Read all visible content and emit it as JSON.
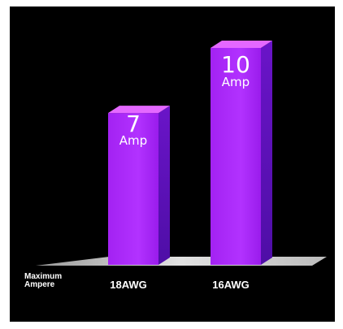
{
  "chart_data": {
    "type": "bar",
    "title": "",
    "xlabel": "Maximum Ampere",
    "xlabel_lines": [
      "Maximum",
      "Ampere"
    ],
    "ylabel": "",
    "categories": [
      "18AWG",
      "16AWG"
    ],
    "values": [
      7,
      10
    ],
    "unit": "Amp",
    "ylim": [
      0,
      10
    ],
    "grid": false,
    "legend": "none",
    "colors": {
      "background": "#000000",
      "bar_front": "#9d1cf0",
      "bar_front_light": "#b33cff",
      "bar_side": "#5810b8",
      "bar_top": "#e468ff",
      "floor": "#d4d4d4",
      "text": "#ffffff"
    }
  }
}
